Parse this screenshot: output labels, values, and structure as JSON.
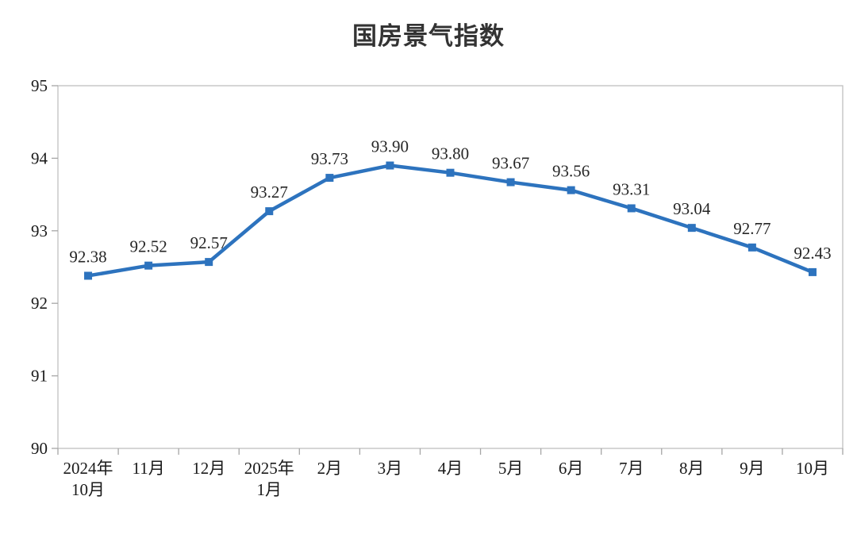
{
  "chart_data": {
    "type": "line",
    "title": "国房景气指数",
    "categories": [
      "2024年\n10月",
      "11月",
      "12月",
      "2025年\n1月",
      "2月",
      "3月",
      "4月",
      "5月",
      "6月",
      "7月",
      "8月",
      "9月",
      "10月"
    ],
    "values": [
      92.38,
      92.52,
      92.57,
      93.27,
      93.73,
      93.9,
      93.8,
      93.67,
      93.56,
      93.31,
      93.04,
      92.77,
      92.43
    ],
    "point_labels": [
      "92.38",
      "92.52",
      "92.57",
      "93.27",
      "93.73",
      "93.90",
      "93.80",
      "93.67",
      "93.56",
      "93.31",
      "93.04",
      "92.77",
      "92.43"
    ],
    "xlabel": "",
    "ylabel": "",
    "ylim": [
      90,
      95
    ],
    "ytick_step": 1,
    "ytick_labels": [
      "90",
      "91",
      "92",
      "93",
      "94",
      "95"
    ],
    "grid": false,
    "legend": "none",
    "marker": "square",
    "label_position": "above",
    "colors": {
      "line": "#2D73BE",
      "marker": "#2D73BE",
      "point_label_text": "#262626",
      "axis_label_text": "#1a1a1a",
      "title_text": "#333333",
      "plot_border": "#c0c0c0",
      "tick": "#a6a6a6"
    }
  }
}
